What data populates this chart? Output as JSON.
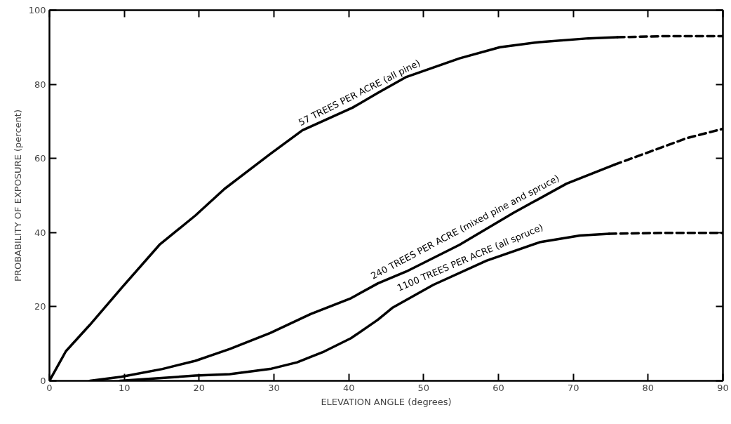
{
  "chart_data": {
    "type": "line",
    "xlabel": "ELEVATION ANGLE (degrees)",
    "ylabel": "PROBABILITY OF EXPOSURE (percent)",
    "xlim": [
      0,
      90
    ],
    "xticks": [
      0,
      10,
      20,
      30,
      40,
      50,
      60,
      70,
      80,
      90
    ],
    "ylim": [
      0,
      100
    ],
    "yticks": [
      0,
      20,
      40,
      60,
      80,
      100
    ],
    "grid": false,
    "legend": false,
    "marker": "none",
    "series": [
      {
        "name": "57 TREES PER ACRE (all pine)",
        "color": "#000000",
        "line_style": "solid",
        "x": [
          0,
          2.2,
          5.4,
          9.7,
          14.7,
          19.5,
          23.4,
          29.5,
          33.8,
          40.5,
          43.9,
          47.7,
          54.8,
          60.2,
          65.5,
          72,
          75.9
        ],
        "values": [
          0,
          8,
          15.1,
          25.2,
          36.7,
          44.6,
          51.8,
          61.2,
          67.6,
          73.7,
          77.7,
          82,
          87,
          90,
          91.4,
          92.4,
          92.7
        ]
      },
      {
        "color": "#000000",
        "line_style": "dashed",
        "x": [
          75.9,
          82,
          90
        ],
        "values": [
          92.7,
          93,
          93
        ]
      },
      {
        "name": "240 TREES PER ACRE (mixed pine and spruce)",
        "color": "#000000",
        "line_style": "solid",
        "x": [
          5.4,
          9.6,
          15.1,
          19.5,
          24.1,
          29.5,
          34.9,
          40.3,
          43.9,
          47.7,
          54.8,
          62,
          69.1,
          75.5
        ],
        "values": [
          0,
          1.1,
          3.2,
          5.4,
          8.6,
          12.9,
          18,
          22.3,
          26.3,
          29.5,
          36.7,
          45.3,
          53.2,
          58.3
        ]
      },
      {
        "color": "#000000",
        "line_style": "dashed",
        "x": [
          75.5,
          79.8,
          85.2,
          90
        ],
        "values": [
          58.3,
          61.5,
          65.5,
          68
        ]
      },
      {
        "name": "1100 TREES PER ACRE (all spruce)",
        "color": "#000000",
        "line_style": "solid",
        "x": [
          9.4,
          19.5,
          24.1,
          29.5,
          33.1,
          36.7,
          40.3,
          43.9,
          45.9,
          51.3,
          58.4,
          65.5,
          70.9,
          74.8
        ],
        "values": [
          0,
          1.4,
          1.8,
          3.2,
          5,
          7.9,
          11.5,
          16.5,
          19.8,
          25.9,
          32.4,
          37.4,
          39.2,
          39.7
        ]
      },
      {
        "color": "#000000",
        "line_style": "dashed",
        "x": [
          74.8,
          82,
          90
        ],
        "values": [
          39.7,
          39.9,
          39.9
        ]
      }
    ]
  }
}
